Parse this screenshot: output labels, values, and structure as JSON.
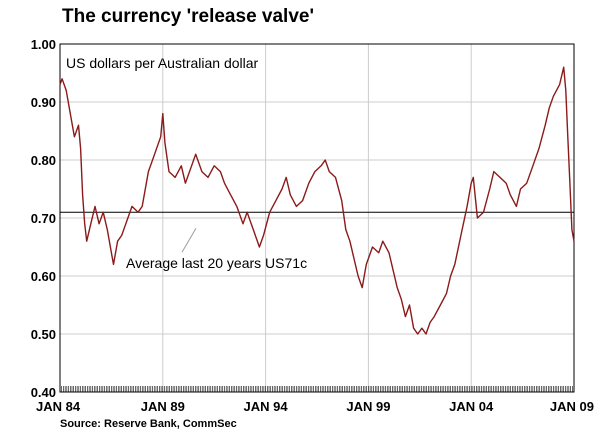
{
  "title": "The currency 'release valve'",
  "source": "Source: Reserve Bank, CommSec",
  "colors": {
    "line": "#8b1a1a",
    "grid": "#cccccc",
    "reference": "#000000"
  },
  "chart_data": {
    "type": "line",
    "title": "The currency 'release valve'",
    "ylabel": "US dollars per Australian dollar",
    "xlabel": "",
    "ylim": [
      0.4,
      1.0
    ],
    "xlim": [
      1984.0,
      2009.0
    ],
    "grid": true,
    "y_ticks": [
      {
        "v": 1.0,
        "label": "1.00"
      },
      {
        "v": 0.9,
        "label": "0.90"
      },
      {
        "v": 0.8,
        "label": "0.80"
      },
      {
        "v": 0.7,
        "label": "0.70"
      },
      {
        "v": 0.6,
        "label": "0.60"
      },
      {
        "v": 0.5,
        "label": "0.50"
      },
      {
        "v": 0.4,
        "label": "0.40"
      }
    ],
    "x_ticks": [
      {
        "v": 1984.0,
        "label": "JAN 84"
      },
      {
        "v": 1989.0,
        "label": "JAN 89"
      },
      {
        "v": 1994.0,
        "label": "JAN 94"
      },
      {
        "v": 1999.0,
        "label": "JAN 99"
      },
      {
        "v": 2004.0,
        "label": "JAN 04"
      },
      {
        "v": 2009.0,
        "label": "JAN 09"
      }
    ],
    "reference_line": {
      "value": 0.71,
      "label": "Average last 20 years US71c"
    },
    "series": [
      {
        "values": [
          [
            1984.0,
            0.93
          ],
          [
            1984.1,
            0.94
          ],
          [
            1984.3,
            0.92
          ],
          [
            1984.5,
            0.88
          ],
          [
            1984.7,
            0.84
          ],
          [
            1984.9,
            0.86
          ],
          [
            1985.0,
            0.82
          ],
          [
            1985.1,
            0.74
          ],
          [
            1985.2,
            0.69
          ],
          [
            1985.3,
            0.66
          ],
          [
            1985.5,
            0.69
          ],
          [
            1985.7,
            0.72
          ],
          [
            1985.9,
            0.69
          ],
          [
            1986.1,
            0.71
          ],
          [
            1986.3,
            0.68
          ],
          [
            1986.5,
            0.64
          ],
          [
            1986.6,
            0.62
          ],
          [
            1986.8,
            0.66
          ],
          [
            1987.0,
            0.67
          ],
          [
            1987.2,
            0.69
          ],
          [
            1987.5,
            0.72
          ],
          [
            1987.8,
            0.71
          ],
          [
            1988.0,
            0.72
          ],
          [
            1988.3,
            0.78
          ],
          [
            1988.6,
            0.81
          ],
          [
            1988.9,
            0.84
          ],
          [
            1989.0,
            0.88
          ],
          [
            1989.1,
            0.83
          ],
          [
            1989.3,
            0.78
          ],
          [
            1989.6,
            0.77
          ],
          [
            1989.9,
            0.79
          ],
          [
            1990.1,
            0.76
          ],
          [
            1990.4,
            0.79
          ],
          [
            1990.6,
            0.81
          ],
          [
            1990.9,
            0.78
          ],
          [
            1991.2,
            0.77
          ],
          [
            1991.5,
            0.79
          ],
          [
            1991.8,
            0.78
          ],
          [
            1992.0,
            0.76
          ],
          [
            1992.3,
            0.74
          ],
          [
            1992.6,
            0.72
          ],
          [
            1992.9,
            0.69
          ],
          [
            1993.1,
            0.71
          ],
          [
            1993.4,
            0.68
          ],
          [
            1993.7,
            0.65
          ],
          [
            1993.9,
            0.67
          ],
          [
            1994.2,
            0.71
          ],
          [
            1994.5,
            0.73
          ],
          [
            1994.8,
            0.75
          ],
          [
            1995.0,
            0.77
          ],
          [
            1995.2,
            0.74
          ],
          [
            1995.5,
            0.72
          ],
          [
            1995.8,
            0.73
          ],
          [
            1996.1,
            0.76
          ],
          [
            1996.4,
            0.78
          ],
          [
            1996.7,
            0.79
          ],
          [
            1996.9,
            0.8
          ],
          [
            1997.1,
            0.78
          ],
          [
            1997.4,
            0.77
          ],
          [
            1997.7,
            0.73
          ],
          [
            1997.9,
            0.68
          ],
          [
            1998.1,
            0.66
          ],
          [
            1998.3,
            0.63
          ],
          [
            1998.5,
            0.6
          ],
          [
            1998.7,
            0.58
          ],
          [
            1998.9,
            0.62
          ],
          [
            1999.2,
            0.65
          ],
          [
            1999.5,
            0.64
          ],
          [
            1999.7,
            0.66
          ],
          [
            2000.0,
            0.64
          ],
          [
            2000.2,
            0.61
          ],
          [
            2000.4,
            0.58
          ],
          [
            2000.6,
            0.56
          ],
          [
            2000.8,
            0.53
          ],
          [
            2001.0,
            0.55
          ],
          [
            2001.2,
            0.51
          ],
          [
            2001.4,
            0.5
          ],
          [
            2001.6,
            0.51
          ],
          [
            2001.8,
            0.5
          ],
          [
            2002.0,
            0.52
          ],
          [
            2002.2,
            0.53
          ],
          [
            2002.5,
            0.55
          ],
          [
            2002.8,
            0.57
          ],
          [
            2003.0,
            0.6
          ],
          [
            2003.2,
            0.62
          ],
          [
            2003.5,
            0.67
          ],
          [
            2003.8,
            0.72
          ],
          [
            2004.0,
            0.76
          ],
          [
            2004.1,
            0.77
          ],
          [
            2004.3,
            0.7
          ],
          [
            2004.6,
            0.71
          ],
          [
            2004.9,
            0.75
          ],
          [
            2005.1,
            0.78
          ],
          [
            2005.4,
            0.77
          ],
          [
            2005.7,
            0.76
          ],
          [
            2005.9,
            0.74
          ],
          [
            2006.2,
            0.72
          ],
          [
            2006.4,
            0.75
          ],
          [
            2006.7,
            0.76
          ],
          [
            2007.0,
            0.79
          ],
          [
            2007.3,
            0.82
          ],
          [
            2007.6,
            0.86
          ],
          [
            2007.8,
            0.89
          ],
          [
            2008.0,
            0.91
          ],
          [
            2008.3,
            0.93
          ],
          [
            2008.5,
            0.96
          ],
          [
            2008.6,
            0.92
          ],
          [
            2008.7,
            0.84
          ],
          [
            2008.8,
            0.76
          ],
          [
            2008.9,
            0.68
          ],
          [
            2009.0,
            0.66
          ]
        ]
      }
    ]
  }
}
